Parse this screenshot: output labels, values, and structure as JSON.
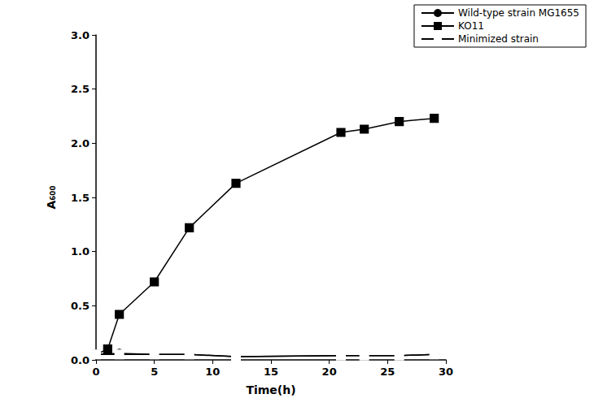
{
  "chart_data": {
    "type": "line",
    "x_label": "Time(h)",
    "y_label": "A₆₀₀",
    "xlim": [
      0,
      30
    ],
    "xticks": [
      0,
      5,
      10,
      15,
      20,
      25,
      30
    ],
    "ylim": [
      0,
      3
    ],
    "yticks": [
      {
        "value": 0,
        "label": "0.0"
      },
      {
        "value": 0.5,
        "label": "0.5"
      },
      {
        "value": 1,
        "label": "1.0"
      },
      {
        "value": 1.5,
        "label": "1.5"
      },
      {
        "value": 2,
        "label": "2.0"
      },
      {
        "value": 2.5,
        "label": "2.5"
      },
      {
        "value": 3,
        "label": "3.0"
      }
    ],
    "grid": false,
    "legend": "upper right",
    "series": [
      {
        "name": "Wild-type strain MG1655",
        "color": "#000000",
        "marker": "circle",
        "line_style": "solid",
        "x": [
          0,
          2,
          5,
          8,
          12,
          21,
          23,
          26,
          29
        ],
        "values": [
          0.05,
          0.06,
          0.05,
          0.05,
          0.03,
          0.04,
          0.04,
          0.04,
          0.05
        ]
      },
      {
        "name": "KO11",
        "color": "#000000",
        "marker": "square",
        "line_style": "solid",
        "x": [
          0,
          1,
          2,
          5,
          8,
          12,
          21,
          23,
          26,
          29
        ],
        "values": [
          0.05,
          0.1,
          0.42,
          0.72,
          1.22,
          1.63,
          2.1,
          2.13,
          2.2,
          2.23
        ]
      },
      {
        "name": "Minimized strain",
        "color": "#000000",
        "marker": "open_square",
        "line_style": "solid",
        "x": [
          0,
          2,
          5,
          8,
          12,
          21,
          23,
          26,
          29
        ],
        "values": [
          0.05,
          0.05,
          0.05,
          0.05,
          0.03,
          0.04,
          0.04,
          0.04,
          0.05
        ]
      }
    ]
  }
}
